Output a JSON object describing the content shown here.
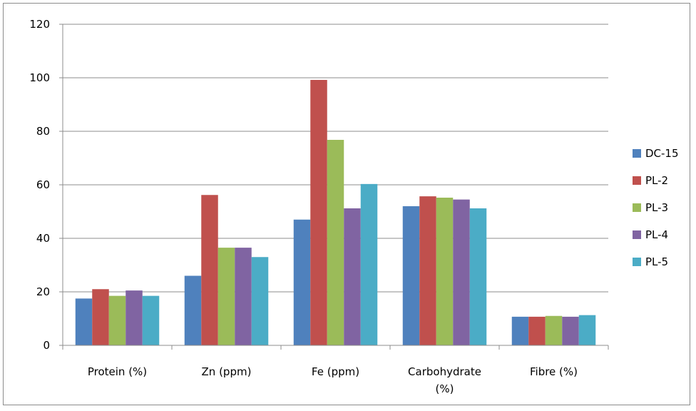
{
  "chart_data": {
    "type": "bar",
    "title": "",
    "xlabel": "",
    "ylabel": "",
    "ylim": [
      0,
      120
    ],
    "yticks": [
      0,
      20,
      40,
      60,
      80,
      100,
      120
    ],
    "grid": true,
    "legend_position": "right",
    "categories": [
      "Protein (%)",
      "Zn (ppm)",
      "Fe (ppm)",
      "Carbohydrate (%)",
      "Fibre (%)"
    ],
    "series": [
      {
        "name": "DC-15",
        "color": "#4f81bd",
        "values": [
          17.5,
          26,
          47,
          52,
          10.7
        ]
      },
      {
        "name": "PL-2",
        "color": "#c0504d",
        "values": [
          21,
          56.2,
          99.2,
          55.7,
          10.7
        ]
      },
      {
        "name": "PL-3",
        "color": "#9bbb59",
        "values": [
          18.5,
          36.5,
          76.8,
          55.2,
          11
        ]
      },
      {
        "name": "PL-4",
        "color": "#8064a2",
        "values": [
          20.5,
          36.5,
          51.2,
          54.5,
          10.7
        ]
      },
      {
        "name": "PL-5",
        "color": "#4bacc6",
        "values": [
          18.5,
          33,
          60.3,
          51.2,
          11.3
        ]
      }
    ]
  }
}
